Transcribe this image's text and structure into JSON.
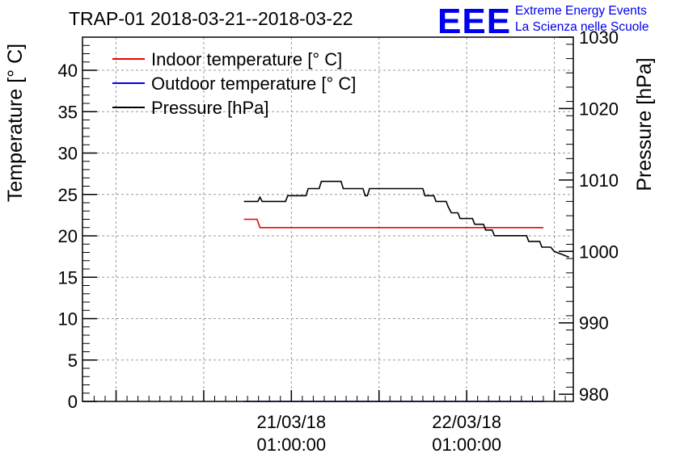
{
  "chart_data": {
    "type": "line",
    "title": "TRAP-01 2018-03-21--2018-03-22",
    "xlabel": "",
    "ylabel": "Temperature [° C]",
    "ylabel_right": "Pressure [hPa]",
    "x_unit": "hours since 2018-03-20 00:00",
    "xlim": [
      -3.6,
      63.6
    ],
    "ylim": [
      0,
      44
    ],
    "ylim_right": [
      979,
      1030
    ],
    "x_ticks": [
      {
        "x": 25,
        "label_date": "21/03/18",
        "label_time": "01:00:00"
      },
      {
        "x": 49,
        "label_date": "22/03/18",
        "label_time": "01:00:00"
      }
    ],
    "y_ticks": [
      0,
      5,
      10,
      15,
      20,
      25,
      30,
      35,
      40
    ],
    "y_ticks_right": [
      980,
      990,
      1000,
      1010,
      1020,
      1030
    ],
    "grid": true,
    "legend": "top-left",
    "series": [
      {
        "name": "Indoor temperature [° C]",
        "color": "#ee0000",
        "axis": "left",
        "points": [
          [
            18.5,
            22.0
          ],
          [
            20.3,
            22.0
          ],
          [
            20.7,
            21.0
          ],
          [
            59.5,
            21.0
          ]
        ]
      },
      {
        "name": "Outdoor temperature [° C]",
        "color": "#0000ee",
        "axis": "left",
        "points": [
          [
            18.5,
            0.0
          ],
          [
            59.5,
            0.0
          ]
        ]
      },
      {
        "name": "Pressure [hPa]",
        "color": "#000000",
        "axis": "right",
        "points": [
          [
            18.5,
            1007.0
          ],
          [
            20.4,
            1007.0
          ],
          [
            20.7,
            1007.6
          ],
          [
            21.0,
            1007.0
          ],
          [
            24.2,
            1007.0
          ],
          [
            24.5,
            1007.8
          ],
          [
            27.0,
            1007.8
          ],
          [
            27.3,
            1008.8
          ],
          [
            28.8,
            1008.8
          ],
          [
            29.1,
            1009.8
          ],
          [
            31.8,
            1009.8
          ],
          [
            32.1,
            1008.8
          ],
          [
            34.8,
            1008.8
          ],
          [
            35.1,
            1007.8
          ],
          [
            35.4,
            1007.8
          ],
          [
            35.7,
            1008.8
          ],
          [
            43.0,
            1008.8
          ],
          [
            43.3,
            1007.8
          ],
          [
            44.5,
            1007.8
          ],
          [
            44.8,
            1007.0
          ],
          [
            46.2,
            1007.0
          ],
          [
            46.5,
            1006.2
          ],
          [
            46.9,
            1005.4
          ],
          [
            47.8,
            1005.4
          ],
          [
            48.1,
            1004.6
          ],
          [
            49.8,
            1004.6
          ],
          [
            50.1,
            1003.8
          ],
          [
            51.3,
            1003.8
          ],
          [
            51.6,
            1003.0
          ],
          [
            52.5,
            1003.0
          ],
          [
            52.8,
            1002.2
          ],
          [
            57.2,
            1002.2
          ],
          [
            57.5,
            1001.4
          ],
          [
            59.0,
            1001.4
          ],
          [
            59.3,
            1000.6
          ],
          [
            60.5,
            1000.6
          ],
          [
            61.0,
            1000.0
          ],
          [
            62.0,
            999.6
          ],
          [
            63.0,
            999.2
          ]
        ]
      }
    ]
  },
  "logo": {
    "mark": "EEE",
    "line1": "Extreme Energy Events",
    "line2": "La Scienza nelle Scuole"
  }
}
